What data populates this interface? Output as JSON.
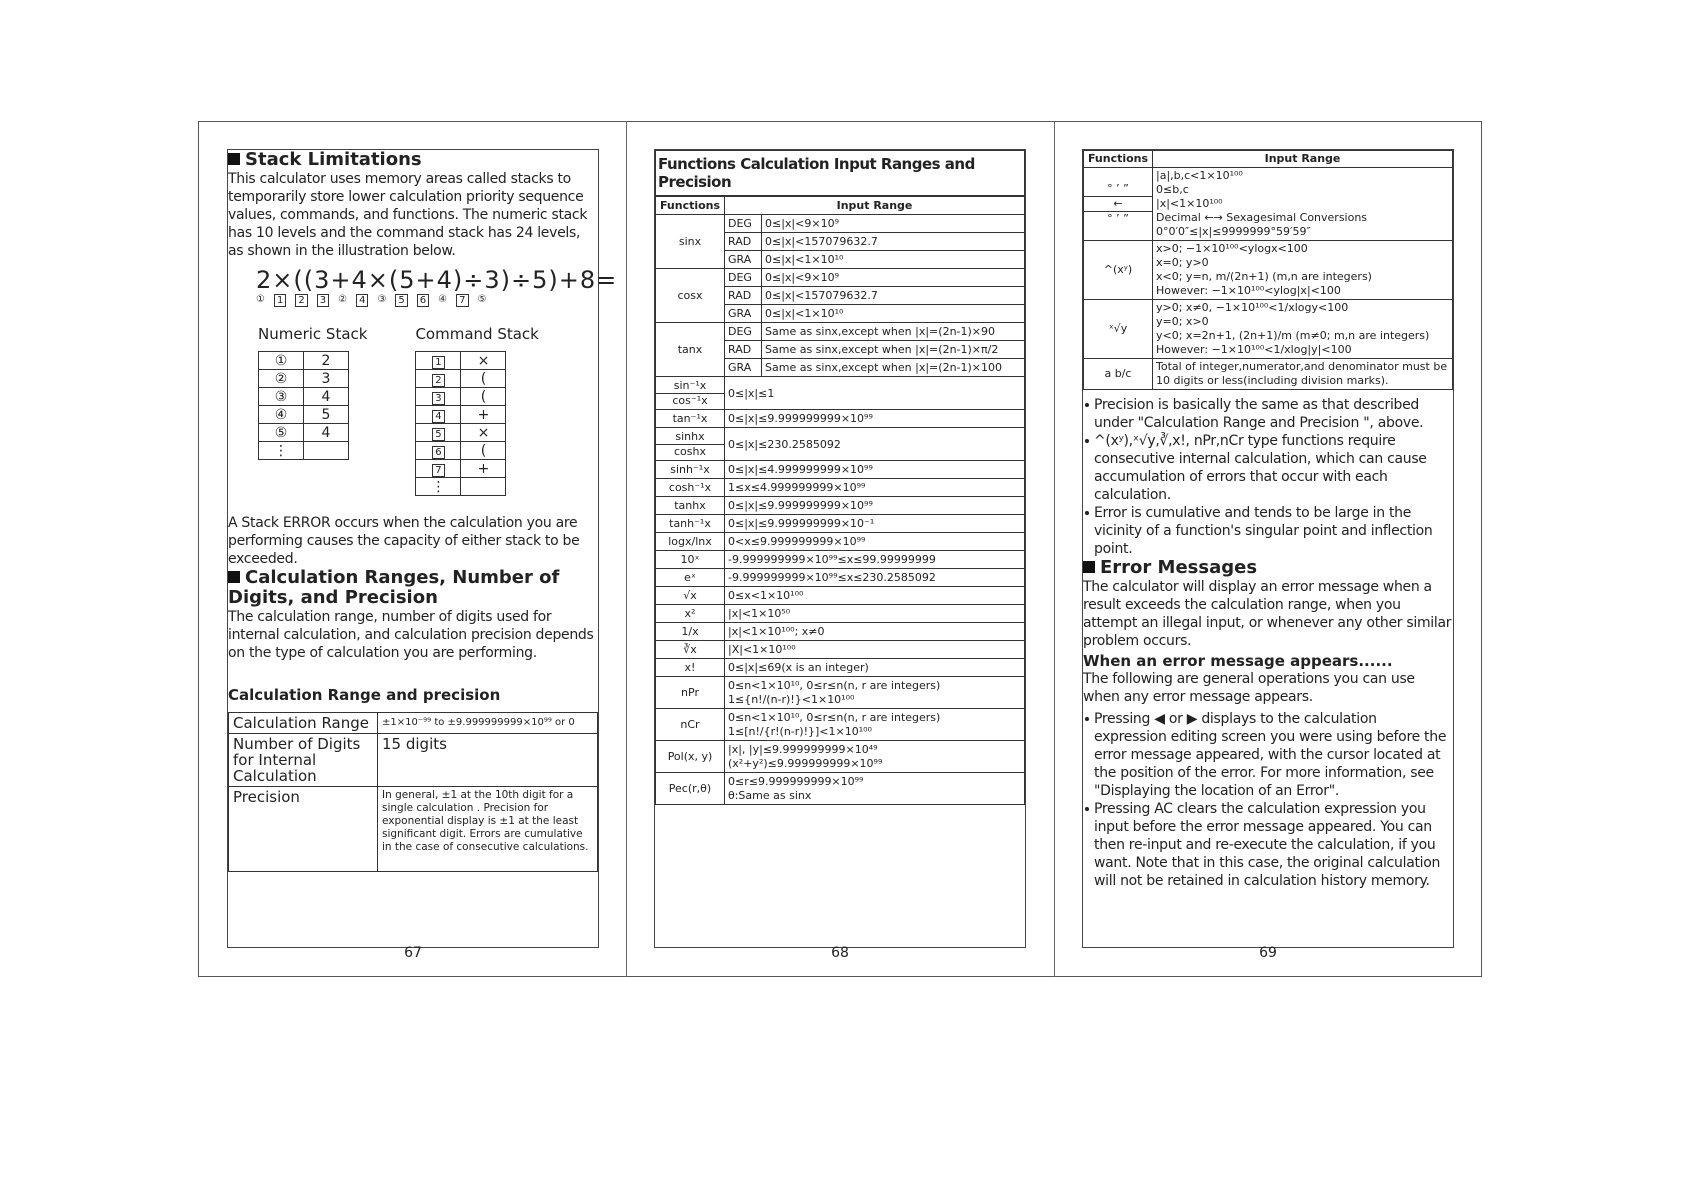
{
  "pages": [
    {
      "heading": "Stack Limitations",
      "intro": "This calculator uses memory areas called stacks to temporarily store lower calculation priority sequence values, commands, and functions. The numeric stack has 10 levels and the command stack has 24 levels, as shown in the illustration below.",
      "expression": "2×((3+4×(5+4)÷3)÷5)+8=",
      "illustration_labels": [
        "①",
        "1",
        "2",
        "3",
        "②",
        "4",
        "③",
        "5",
        "6",
        "④",
        "7",
        "⑤"
      ],
      "numeric_stack_title": "Numeric Stack",
      "command_stack_title": "Command Stack",
      "numeric_stack": [
        [
          "①",
          "2"
        ],
        [
          "②",
          "3"
        ],
        [
          "③",
          "4"
        ],
        [
          "④",
          "5"
        ],
        [
          "⑤",
          "4"
        ],
        [
          "⋮",
          ""
        ]
      ],
      "command_stack": [
        [
          "1",
          "×"
        ],
        [
          "2",
          "("
        ],
        [
          "3",
          "("
        ],
        [
          "4",
          "+"
        ],
        [
          "5",
          "×"
        ],
        [
          "6",
          "("
        ],
        [
          "7",
          "+"
        ],
        [
          "⋮",
          ""
        ]
      ],
      "error_text": "A Stack ERROR occurs when the calculation you are performing causes the capacity of either stack to be exceeded.",
      "heading2": "Calculation Ranges, Number of Digits, and Precision",
      "para": "The calculation range, number of digits used for internal calculation, and calculation precision depends on the type of calculation you are performing.",
      "subheading": "Calculation Range and precision",
      "table": [
        [
          "Calculation Range",
          "±1×10⁻⁹⁹ to ±9.999999999×10⁹⁹ or 0"
        ],
        [
          "Number of Digits for Internal Calculation",
          "15 digits"
        ],
        [
          "Precision",
          "In general, ±1 at the 10th digit for a single calculation . Precision for exponential display is ±1 at the least significant digit. Errors are cumulative in the case of consecutive calculations."
        ]
      ],
      "page_number": "67"
    },
    {
      "title": "Functions Calculation Input Ranges and Precision",
      "headers": [
        "Functions",
        "Input Range"
      ],
      "rows": [
        {
          "functions": [
            "sinx"
          ],
          "modes": [
            [
              "DEG",
              "0≤|x|<9×10⁹"
            ],
            [
              "RAD",
              "0≤|x|<157079632.7"
            ],
            [
              "GRA",
              "0≤|x|<1×10¹⁰"
            ]
          ]
        },
        {
          "functions": [
            "cosx"
          ],
          "modes": [
            [
              "DEG",
              "0≤|x|<9×10⁹"
            ],
            [
              "RAD",
              "0≤|x|<157079632.7"
            ],
            [
              "GRA",
              "0≤|x|<1×10¹⁰"
            ]
          ]
        },
        {
          "functions": [
            "tanx"
          ],
          "modes": [
            [
              "DEG",
              "Same as sinx,except when |x|=(2n-1)×90"
            ],
            [
              "RAD",
              "Same as sinx,except when |x|=(2n-1)×π/2"
            ],
            [
              "GRA",
              "Same as sinx,except when |x|=(2n-1)×100"
            ]
          ]
        },
        {
          "functions": [
            "sin⁻¹x",
            "cos⁻¹x"
          ],
          "range": [
            "0≤|x|≤1"
          ]
        },
        {
          "functions": [
            "tan⁻¹x"
          ],
          "range": [
            "0≤|x|≤9.999999999×10⁹⁹"
          ]
        },
        {
          "functions": [
            "sinhx",
            "coshx"
          ],
          "range": [
            "0≤|x|≤230.2585092"
          ]
        },
        {
          "functions": [
            "sinh⁻¹x"
          ],
          "range": [
            "0≤|x|≤4.999999999×10⁹⁹"
          ]
        },
        {
          "functions": [
            "cosh⁻¹x"
          ],
          "range": [
            "1≤x≤4.999999999×10⁹⁹"
          ]
        },
        {
          "functions": [
            "tanhx"
          ],
          "range": [
            "0≤|x|≤9.999999999×10⁹⁹"
          ]
        },
        {
          "functions": [
            "tanh⁻¹x"
          ],
          "range": [
            "0≤|x|≤9.999999999×10⁻¹"
          ]
        },
        {
          "functions": [
            "logx/lnx"
          ],
          "range": [
            "0<x≤9.999999999×10⁹⁹"
          ]
        },
        {
          "functions": [
            "10ˣ"
          ],
          "range": [
            "-9.999999999×10⁹⁹≤x≤99.99999999"
          ]
        },
        {
          "functions": [
            "eˣ"
          ],
          "range": [
            "-9.999999999×10⁹⁹≤x≤230.2585092"
          ]
        },
        {
          "functions": [
            "√x"
          ],
          "range": [
            "0≤x<1×10¹⁰⁰"
          ]
        },
        {
          "functions": [
            "x²"
          ],
          "range": [
            "|x|<1×10⁵⁰"
          ]
        },
        {
          "functions": [
            "1/x"
          ],
          "range": [
            "|x|<1×10¹⁰⁰; x≠0"
          ]
        },
        {
          "functions": [
            "∛x"
          ],
          "range": [
            "|X|<1×10¹⁰⁰"
          ]
        },
        {
          "functions": [
            "x!"
          ],
          "range": [
            "0≤|x|≤69(x is an integer)"
          ]
        },
        {
          "functions": [
            "nPr"
          ],
          "range": [
            "0≤n<1×10¹⁰, 0≤r≤n(n, r are integers)",
            "1≤{n!/(n-r)!}<1×10¹⁰⁰"
          ]
        },
        {
          "functions": [
            "nCr"
          ],
          "range": [
            "0≤n<1×10¹⁰, 0≤r≤n(n, r are integers)",
            "1≤[n!/{r!(n-r)!}]<1×10¹⁰⁰"
          ]
        },
        {
          "functions": [
            "Pol(x, y)"
          ],
          "range": [
            "|x|, |y|≤9.999999999×10⁴⁹",
            "(x²+y²)≤9.999999999×10⁹⁹"
          ]
        },
        {
          "functions": [
            "Pec(r,θ)"
          ],
          "range": [
            "0≤r≤9.999999999×10⁹⁹",
            "θ:Same as sinx"
          ]
        }
      ],
      "page_number": "68"
    },
    {
      "headers": [
        "Functions",
        "Input Range"
      ],
      "rows": [
        {
          "functions": [
            "° ’ ”",
            "←",
            "° ’ ”"
          ],
          "range": [
            "|a|,b,c<1×10¹⁰⁰",
            "0≤b,c",
            "|x|<1×10¹⁰⁰",
            "Decimal ←→ Sexagesimal Conversions",
            "0°0′0″≤|x|≤9999999°59′59″"
          ]
        },
        {
          "functions": [
            "^(xʸ)"
          ],
          "range": [
            "x>0; −1×10¹⁰⁰<ylogx<100",
            "x=0; y>0",
            "x<0; y=n, m/(2n+1) (m,n are integers)",
            "However: −1×10¹⁰⁰<ylog|x|<100"
          ]
        },
        {
          "functions": [
            "ˣ√y"
          ],
          "range": [
            "y>0; x≠0, −1×10¹⁰⁰<1/xlogy<100",
            "y=0; x>0",
            "y<0; x=2n+1, (2n+1)/m (m≠0; m,n are integers)",
            "However: −1×10¹⁰⁰<1/xlog|y|<100"
          ]
        },
        {
          "functions": [
            "a b/c"
          ],
          "range": [
            "Total of integer,numerator,and denominator must be 10 digits or less(including division marks)."
          ]
        }
      ],
      "bullets": [
        "Precision is basically the same as that described under \"Calculation Range and Precision \", above.",
        "^(xʸ),ˣ√y,∛,x!, nPr,nCr type functions require consecutive internal calculation, which can cause accumulation of errors that occur with each calculation.",
        "Error is cumulative and tends to be large in the vicinity of a function's singular point and inflection point."
      ],
      "heading": "Error Messages",
      "para": "The calculator will display an error message when a result exceeds the calculation range, when you attempt an illegal input, or whenever any other similar problem occurs.",
      "subheading": "When an error message appears......",
      "para2": "The following are general operations you can use when any error message appears.",
      "bullets2": [
        "Pressing ◀ or ▶ displays to the calculation expression editing screen you were using before the error message appeared, with the cursor located at the position of the error. For more information, see \"Displaying the location of an Error\".",
        "Pressing AC clears the calculation expression you input before the error message appeared. You can then re-input and re-execute the calculation, if you want. Note that in this case, the original calculation will not be retained in calculation history memory."
      ],
      "page_number": "69"
    }
  ]
}
